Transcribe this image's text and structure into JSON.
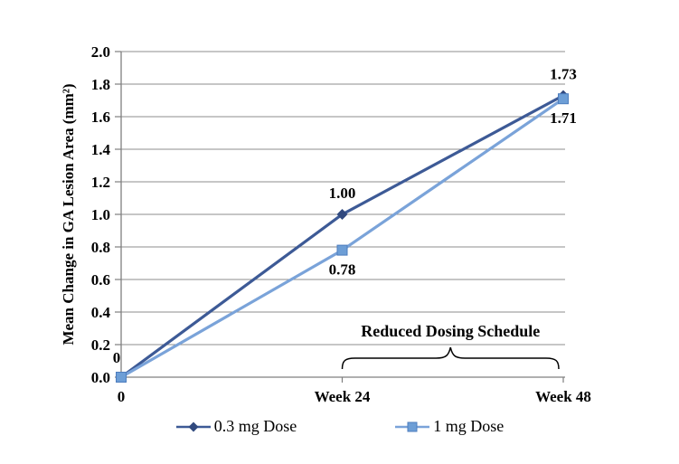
{
  "chart_data": {
    "type": "line",
    "title": "",
    "ylabel": "Mean Change in GA Lesion Area (mm²)",
    "x_categories": [
      "0",
      "Week 24",
      "Week 48"
    ],
    "ylim": [
      0,
      2.0
    ],
    "yticks": [
      "0.0",
      "0.2",
      "0.4",
      "0.6",
      "0.8",
      "1.0",
      "1.2",
      "1.4",
      "1.6",
      "1.8",
      "2.0"
    ],
    "grid": true,
    "legend_position": "bottom",
    "gridline_color": "#8C8C8C",
    "axis_color": "#7F7F7F",
    "text_color": "#000000",
    "series": [
      {
        "name": "0.3 mg Dose",
        "marker": "diamond",
        "color": "#3D5A96",
        "marker_color": "#31497E",
        "values": [
          0,
          1.0,
          1.73
        ],
        "point_labels": [
          "0",
          "1.00",
          "1.73"
        ],
        "label_side": "above"
      },
      {
        "name": "1 mg Dose",
        "marker": "square",
        "color": "#7AA3D9",
        "marker_color": "#6D9ED6",
        "marker_border": "#4D7DBE",
        "values": [
          0,
          0.78,
          1.71
        ],
        "point_labels": [
          null,
          "0.78",
          "1.71"
        ],
        "label_side": "below"
      }
    ],
    "annotation": {
      "label": "Reduced Dosing Schedule",
      "span": [
        "Week 24",
        "Week 48"
      ]
    }
  }
}
